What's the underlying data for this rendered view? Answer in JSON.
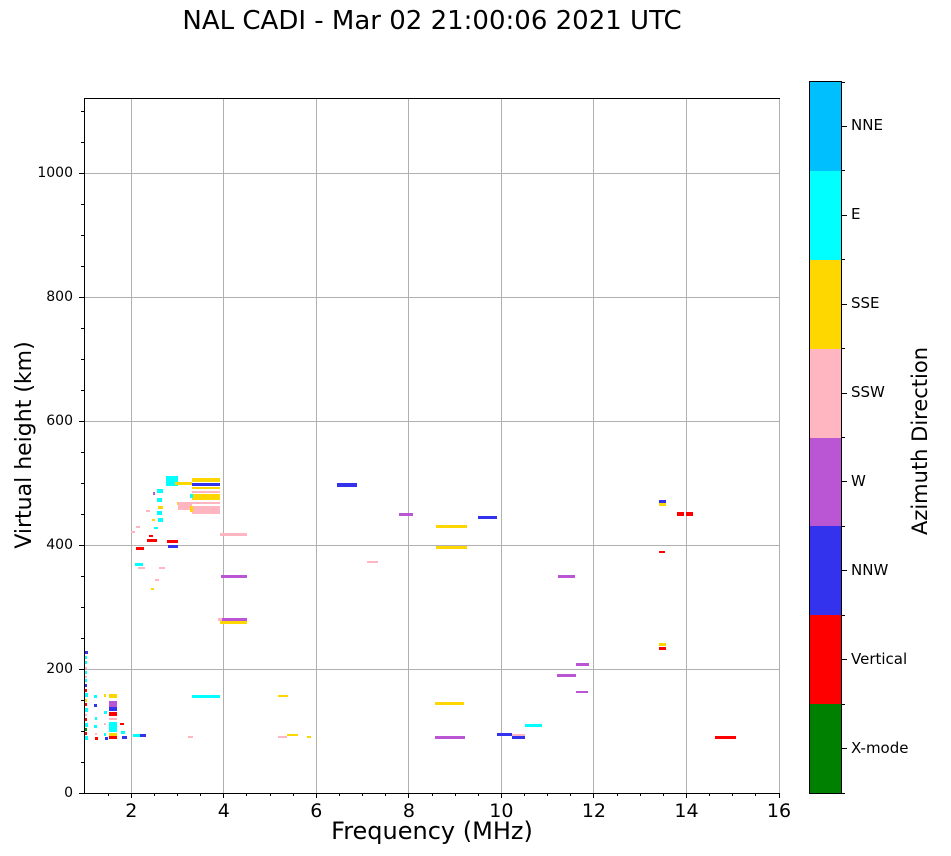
{
  "title": "NAL CADI - Mar 02 21:00:06 2021 UTC",
  "chart_data": {
    "type": "scatter",
    "title": "NAL CADI - Mar 02 21:00:06 2021 UTC",
    "xlabel": "Frequency (MHz)",
    "ylabel": "Virtual height (km)",
    "xlim": [
      1,
      16
    ],
    "ylim": [
      0,
      1120
    ],
    "xticks": [
      2,
      4,
      6,
      8,
      10,
      12,
      14,
      16
    ],
    "yticks": [
      0,
      200,
      400,
      600,
      800,
      1000
    ],
    "x_minor_step": 0.5,
    "y_minor_step": 50,
    "grid": true,
    "grid_color": "#b0b0b0",
    "legend_position": "right-colorbar",
    "colorbar": {
      "title": "Azimuth Direction",
      "categories": [
        "NNE",
        "E",
        "SSE",
        "SSW",
        "W",
        "NNW",
        "Vertical",
        "X-mode"
      ],
      "keys": [
        "NNE",
        "E",
        "SSE",
        "SSW",
        "W",
        "NNW",
        "V",
        "X"
      ],
      "colors": {
        "NNE": "#00bfff",
        "E": "#00ffff",
        "SSE": "#ffd700",
        "SSW": "#ffb6c1",
        "W": "#ba55d3",
        "NNW": "#3333ee",
        "V": "#ff0000",
        "X": "#008000"
      }
    },
    "echoes_format": "[freq_start_MHz, freq_end_MHz, virtual_height_km, azimuth_key, thickness_px]",
    "echoes": [
      [
        1.0,
        1.06,
        226,
        "NNW",
        3
      ],
      [
        1.0,
        1.05,
        218,
        "E",
        3
      ],
      [
        1.0,
        1.04,
        210,
        "E",
        3
      ],
      [
        1.0,
        1.05,
        202,
        "SSW",
        2
      ],
      [
        1.0,
        1.05,
        195,
        "E",
        3
      ],
      [
        1.0,
        1.04,
        188,
        "SSW",
        2
      ],
      [
        1.0,
        1.05,
        181,
        "E",
        3
      ],
      [
        1.0,
        1.04,
        173,
        "NNW",
        3
      ],
      [
        1.0,
        1.05,
        166,
        "V",
        3
      ],
      [
        1.0,
        1.06,
        158,
        "E",
        4
      ],
      [
        1.0,
        1.04,
        150,
        "SSE",
        3
      ],
      [
        1.0,
        1.05,
        143,
        "V",
        3
      ],
      [
        1.0,
        1.06,
        134,
        "E",
        4
      ],
      [
        1.0,
        1.04,
        126,
        "SSW",
        2
      ],
      [
        1.0,
        1.05,
        118,
        "V",
        3
      ],
      [
        1.0,
        1.06,
        110,
        "E",
        4
      ],
      [
        1.0,
        1.04,
        103,
        "X",
        3
      ],
      [
        1.0,
        1.05,
        96,
        "V",
        3
      ],
      [
        1.0,
        1.07,
        89,
        "E",
        4
      ],
      [
        1.2,
        1.26,
        155,
        "E",
        3
      ],
      [
        1.2,
        1.25,
        142,
        "NNW",
        3
      ],
      [
        1.21,
        1.26,
        120,
        "E",
        3
      ],
      [
        1.2,
        1.25,
        107,
        "E",
        3
      ],
      [
        1.21,
        1.27,
        96,
        "SSW",
        2
      ],
      [
        1.22,
        1.28,
        88,
        "V",
        3
      ],
      [
        1.4,
        1.45,
        157,
        "SSE",
        3
      ],
      [
        1.42,
        1.47,
        130,
        "E",
        3
      ],
      [
        1.4,
        1.45,
        112,
        "SSW",
        2
      ],
      [
        1.41,
        1.46,
        95,
        "E",
        3
      ],
      [
        1.43,
        1.49,
        88,
        "NNW",
        3
      ],
      [
        1.52,
        1.7,
        156,
        "SSE",
        4
      ],
      [
        1.52,
        1.7,
        143,
        "W",
        6
      ],
      [
        1.52,
        1.7,
        136,
        "NNW",
        4
      ],
      [
        1.52,
        1.7,
        127,
        "V",
        4
      ],
      [
        1.52,
        1.7,
        120,
        "SSW",
        2
      ],
      [
        1.52,
        1.7,
        107,
        "E",
        10
      ],
      [
        1.52,
        1.7,
        94,
        "SSE",
        3
      ],
      [
        1.52,
        1.7,
        89,
        "V",
        3
      ],
      [
        1.76,
        1.84,
        111,
        "V",
        2
      ],
      [
        1.78,
        1.86,
        98,
        "E",
        3
      ],
      [
        1.8,
        1.9,
        89,
        "NNW",
        3
      ],
      [
        2.04,
        2.18,
        93,
        "E",
        3
      ],
      [
        2.18,
        2.31,
        93,
        "NNW",
        3
      ],
      [
        2.0,
        2.07,
        421,
        "SSW",
        2
      ],
      [
        2.1,
        2.18,
        429,
        "SSW",
        2
      ],
      [
        2.1,
        2.28,
        395,
        "V",
        3
      ],
      [
        2.35,
        2.55,
        407,
        "V",
        3
      ],
      [
        2.78,
        3.0,
        406,
        "V",
        3
      ],
      [
        2.8,
        3.0,
        398,
        "NNW",
        3
      ],
      [
        2.08,
        2.25,
        369,
        "E",
        3
      ],
      [
        2.14,
        2.3,
        363,
        "SSW",
        2
      ],
      [
        2.6,
        2.72,
        363,
        "SSW",
        2
      ],
      [
        2.52,
        2.6,
        343,
        "SSW",
        2
      ],
      [
        2.42,
        2.5,
        330,
        "SSE",
        2
      ],
      [
        2.32,
        2.4,
        455,
        "SSW",
        2
      ],
      [
        2.45,
        2.52,
        441,
        "SSE",
        2
      ],
      [
        2.5,
        2.58,
        428,
        "E",
        2
      ],
      [
        2.38,
        2.46,
        415,
        "V",
        2
      ],
      [
        2.46,
        2.52,
        484,
        "W",
        3
      ],
      [
        2.56,
        2.69,
        487,
        "E",
        4
      ],
      [
        2.56,
        2.66,
        473,
        "E",
        4
      ],
      [
        2.58,
        2.69,
        460,
        "SSE",
        3
      ],
      [
        2.56,
        2.66,
        452,
        "E",
        4
      ],
      [
        2.58,
        2.68,
        440,
        "E",
        4
      ],
      [
        2.74,
        3.02,
        503,
        "E",
        10
      ],
      [
        2.95,
        3.31,
        500,
        "SSE",
        3
      ],
      [
        2.99,
        3.32,
        468,
        "SSE",
        3
      ],
      [
        3.01,
        3.32,
        463,
        "SSW",
        8
      ],
      [
        3.31,
        3.92,
        505,
        "SSE",
        4
      ],
      [
        3.31,
        3.92,
        498,
        "NNW",
        3
      ],
      [
        3.31,
        3.92,
        492,
        "SSE",
        2
      ],
      [
        3.31,
        3.92,
        485,
        "SSW",
        2
      ],
      [
        3.31,
        3.92,
        478,
        "SSE",
        6
      ],
      [
        3.31,
        3.92,
        468,
        "SSW",
        2
      ],
      [
        3.27,
        3.34,
        480,
        "E",
        4
      ],
      [
        3.31,
        3.92,
        457,
        "SSW",
        8
      ],
      [
        3.27,
        3.34,
        458,
        "SSE",
        6
      ],
      [
        3.92,
        4.51,
        417,
        "SSW",
        3
      ],
      [
        3.94,
        4.5,
        350,
        "W",
        3
      ],
      [
        3.92,
        4.5,
        280,
        "W",
        3
      ],
      [
        3.92,
        4.51,
        275,
        "SSE",
        3
      ],
      [
        3.88,
        3.96,
        280,
        "SSW",
        3
      ],
      [
        3.32,
        3.92,
        156,
        "E",
        3
      ],
      [
        3.22,
        3.33,
        90,
        "SSW",
        2
      ],
      [
        5.18,
        5.38,
        157,
        "SSE",
        2
      ],
      [
        5.18,
        5.36,
        90,
        "SSW",
        2
      ],
      [
        5.36,
        5.61,
        94,
        "SSE",
        2
      ],
      [
        5.79,
        5.88,
        90,
        "SSE",
        2
      ],
      [
        6.44,
        6.87,
        497,
        "NNW",
        4
      ],
      [
        7.09,
        7.34,
        372,
        "SSW",
        2
      ],
      [
        7.79,
        8.1,
        450,
        "W",
        3
      ],
      [
        8.58,
        9.25,
        430,
        "SSE",
        3
      ],
      [
        8.58,
        9.25,
        396,
        "SSE",
        3
      ],
      [
        8.57,
        9.2,
        144,
        "SSE",
        3
      ],
      [
        8.57,
        9.21,
        90,
        "W",
        3
      ],
      [
        9.5,
        9.9,
        444,
        "NNW",
        3
      ],
      [
        9.91,
        10.22,
        94,
        "NNW",
        3
      ],
      [
        10.22,
        10.51,
        94,
        "SSW",
        2
      ],
      [
        10.22,
        10.51,
        89,
        "NNW",
        3
      ],
      [
        10.51,
        10.87,
        109,
        "E",
        3
      ],
      [
        11.23,
        11.6,
        350,
        "W",
        3
      ],
      [
        11.21,
        11.61,
        189,
        "W",
        3
      ],
      [
        11.61,
        11.9,
        207,
        "W",
        3
      ],
      [
        11.61,
        11.88,
        163,
        "W",
        2
      ],
      [
        13.41,
        13.56,
        471,
        "NNW",
        3
      ],
      [
        13.41,
        13.56,
        466,
        "SSE",
        3
      ],
      [
        13.79,
        13.95,
        450,
        "V",
        4
      ],
      [
        13.98,
        14.14,
        450,
        "V",
        4
      ],
      [
        13.41,
        13.53,
        389,
        "V",
        2
      ],
      [
        13.4,
        13.55,
        239,
        "SSE",
        3
      ],
      [
        13.4,
        13.55,
        234,
        "V",
        3
      ],
      [
        14.61,
        15.08,
        90,
        "V",
        3
      ]
    ]
  }
}
